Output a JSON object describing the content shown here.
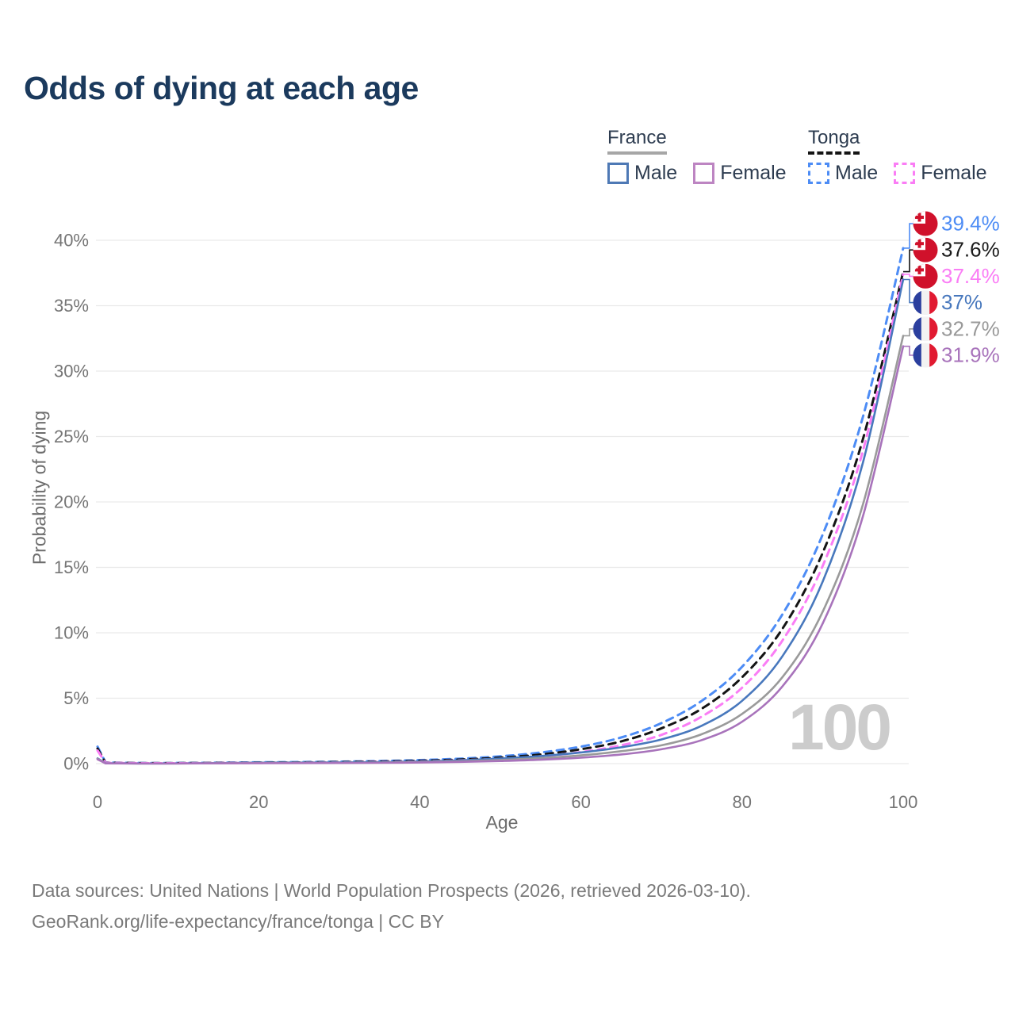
{
  "title": "Odds of dying at each age",
  "legend": {
    "groups": [
      {
        "name": "France",
        "line_style": "solid",
        "underline_color": "#a6a6a6",
        "items": [
          {
            "label": "Male",
            "color": "#4e79b5",
            "dashed": false
          },
          {
            "label": "Female",
            "color": "#bd85c2",
            "dashed": false
          }
        ]
      },
      {
        "name": "Tonga",
        "line_style": "dashed",
        "underline_color": "#141414",
        "items": [
          {
            "label": "Male",
            "color": "#4d8cf5",
            "dashed": true
          },
          {
            "label": "Female",
            "color": "#fa7df5",
            "dashed": true
          }
        ]
      }
    ]
  },
  "chart_data": {
    "type": "line",
    "title": "Odds of dying at each age",
    "xlabel": "Age",
    "ylabel": "Probability of dying",
    "xlim": [
      0,
      100
    ],
    "ylim": [
      0,
      40
    ],
    "xticks": [
      0,
      20,
      40,
      60,
      80,
      100
    ],
    "yticks": [
      0,
      5,
      10,
      15,
      20,
      25,
      30,
      35,
      40
    ],
    "ytick_suffix": "%",
    "grid": true,
    "watermark": "100",
    "x": [
      0,
      1,
      5,
      10,
      15,
      20,
      25,
      30,
      35,
      40,
      45,
      50,
      55,
      60,
      65,
      70,
      75,
      80,
      85,
      90,
      95,
      100
    ],
    "series": [
      {
        "id": "tonga-male",
        "name": "Tonga Male",
        "country": "Tonga",
        "color": "#4d8cf5",
        "label_color": "#4d8cf5",
        "dashed": true,
        "flag": "tonga",
        "end_label": "39.4%",
        "values": [
          1.3,
          0.08,
          0.05,
          0.05,
          0.07,
          0.1,
          0.12,
          0.15,
          0.2,
          0.27,
          0.38,
          0.56,
          0.85,
          1.3,
          2.0,
          3.1,
          4.8,
          7.4,
          11.4,
          17.5,
          26.5,
          39.4
        ]
      },
      {
        "id": "tonga",
        "name": "Tonga (combined)",
        "country": "Tonga",
        "color": "#141414",
        "label_color": "#1a1a1a",
        "dashed": true,
        "flag": "tonga",
        "end_label": "37.6%",
        "values": [
          1.15,
          0.07,
          0.04,
          0.04,
          0.055,
          0.075,
          0.09,
          0.12,
          0.16,
          0.22,
          0.31,
          0.46,
          0.7,
          1.1,
          1.7,
          2.7,
          4.2,
          6.6,
          10.3,
          16.1,
          24.8,
          37.6
        ]
      },
      {
        "id": "tonga-female",
        "name": "Tonga Female",
        "country": "Tonga",
        "color": "#fa7df5",
        "label_color": "#fa7df5",
        "dashed": true,
        "flag": "tonga",
        "end_label": "37.4%",
        "values": [
          1.0,
          0.06,
          0.033,
          0.032,
          0.04,
          0.055,
          0.07,
          0.09,
          0.12,
          0.17,
          0.25,
          0.37,
          0.56,
          0.88,
          1.4,
          2.2,
          3.6,
          5.8,
          9.4,
          15.1,
          23.9,
          37.4
        ]
      },
      {
        "id": "france-male",
        "name": "France Male",
        "country": "France",
        "color": "#4878bd",
        "label_color": "#4878bd",
        "dashed": false,
        "flag": "france",
        "end_label": "37%",
        "values": [
          0.4,
          0.03,
          0.012,
          0.015,
          0.04,
          0.07,
          0.08,
          0.09,
          0.11,
          0.16,
          0.25,
          0.39,
          0.58,
          0.85,
          1.25,
          1.85,
          2.9,
          4.8,
          8.2,
          13.9,
          23.0,
          37.0
        ]
      },
      {
        "id": "france",
        "name": "France (combined)",
        "country": "France",
        "color": "#9a9a9a",
        "label_color": "#999999",
        "dashed": false,
        "flag": "france",
        "end_label": "32.7%",
        "values": [
          0.37,
          0.025,
          0.01,
          0.012,
          0.03,
          0.05,
          0.055,
          0.06,
          0.08,
          0.12,
          0.18,
          0.28,
          0.42,
          0.63,
          0.95,
          1.4,
          2.25,
          3.8,
          6.6,
          11.6,
          19.8,
          32.7
        ]
      },
      {
        "id": "france-female",
        "name": "France Female",
        "country": "France",
        "color": "#a873bb",
        "label_color": "#a873bb",
        "dashed": false,
        "flag": "france",
        "end_label": "31.9%",
        "values": [
          0.33,
          0.02,
          0.009,
          0.01,
          0.025,
          0.035,
          0.04,
          0.045,
          0.06,
          0.085,
          0.13,
          0.2,
          0.3,
          0.46,
          0.7,
          1.1,
          1.8,
          3.2,
          5.9,
          10.7,
          18.9,
          31.9
        ]
      }
    ],
    "flag_colors": {
      "tonga_red": "#d0112b",
      "france_blue": "#2b3f9e",
      "france_red": "#e11a31",
      "flag_white": "#f2f2f2"
    }
  },
  "footer": {
    "line1": "Data sources: United Nations | World Population Prospects (2026, retrieved 2026-03-10).",
    "line2": "GeoRank.org/life-expectancy/france/tonga | CC BY"
  }
}
